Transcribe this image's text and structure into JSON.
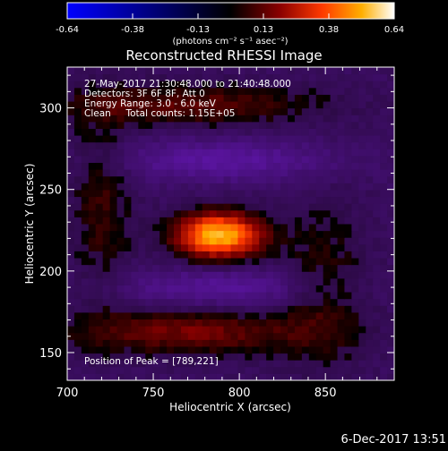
{
  "chart_data": {
    "type": "heatmap",
    "title": "Reconstructed RHESSI Image",
    "xlabel": "Heliocentric X (arcsec)",
    "ylabel": "Heliocentric Y (arcsec)",
    "xlim": [
      700,
      890
    ],
    "ylim": [
      133,
      325
    ],
    "x_ticks": [
      700,
      750,
      800,
      850
    ],
    "y_ticks": [
      150,
      200,
      250,
      300
    ],
    "grid": false,
    "colorbar": {
      "range": [
        -0.64,
        0.64
      ],
      "tick_labels": [
        "-0.64",
        "-0.38",
        "-0.13",
        "0.13",
        "0.38",
        "0.64"
      ],
      "units_label": "(photons cm⁻² s⁻¹ asec⁻²)",
      "colormap": [
        "#0000ff",
        "#000000",
        "#7d0000",
        "#ff3000",
        "#ffa500",
        "#ffffff"
      ]
    },
    "annotations": [
      "27-May-2017 21:30:48.000 to 21:40:48.000",
      "Detectors: 3F 6F 8F, Att 0",
      "Energy Range: 3.0 - 6.0 keV",
      "Clean     Total counts: 1.15E+05",
      "Position of Peak = [789,221]"
    ],
    "peak": {
      "x": 789,
      "y": 221,
      "value": 0.64
    },
    "components": [
      {
        "name": "core",
        "x": 788,
        "y": 222,
        "sx": 18,
        "sy": 10,
        "amp": 0.62
      },
      {
        "name": "upper arc",
        "x": 770,
        "y": 302,
        "sx": 55,
        "sy": 9,
        "amp": 0.2
      },
      {
        "name": "lower arc",
        "x": 770,
        "y": 163,
        "sx": 50,
        "sy": 10,
        "amp": 0.24
      },
      {
        "name": "left arc",
        "x": 720,
        "y": 240,
        "sx": 12,
        "sy": 40,
        "amp": 0.15
      },
      {
        "name": "right arc",
        "x": 850,
        "y": 190,
        "sx": 18,
        "sy": 35,
        "amp": 0.14
      },
      {
        "name": "upper negative lobe",
        "x": 790,
        "y": 268,
        "sx": 45,
        "sy": 9,
        "amp": -0.2
      },
      {
        "name": "lower negative lobe",
        "x": 790,
        "y": 190,
        "sx": 45,
        "sy": 9,
        "amp": -0.18
      }
    ],
    "background": -0.08
  },
  "footer": {
    "date": "6-Dec-2017 13:51"
  }
}
